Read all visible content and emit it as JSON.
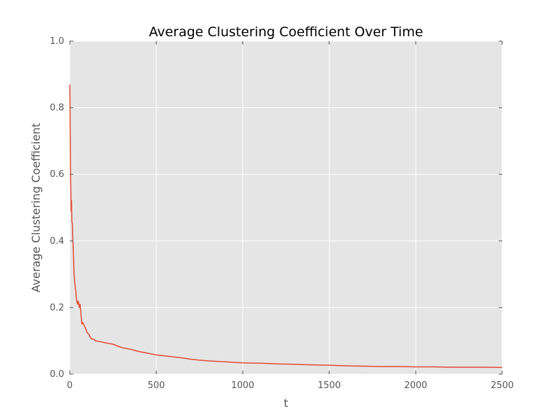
{
  "chart_data": {
    "type": "line",
    "title": "Average Clustering Coefficient Over Time",
    "xlabel": "t",
    "ylabel": "Average Clustering Coefficient",
    "xlim": [
      0,
      2500
    ],
    "ylim": [
      0,
      1.0
    ],
    "x_ticks": [
      0,
      500,
      1000,
      1500,
      2000,
      2500
    ],
    "x_tick_labels": [
      "0",
      "500",
      "1000",
      "1500",
      "2000",
      "2500"
    ],
    "y_ticks": [
      0.0,
      0.2,
      0.4,
      0.6,
      0.8,
      1.0
    ],
    "y_tick_labels": [
      "0.0",
      "0.2",
      "0.4",
      "0.6",
      "0.8",
      "1.0"
    ],
    "grid": true,
    "legend": "none",
    "colors": {
      "background": "#e5e5e5",
      "grid": "#ffffff",
      "line": "#e24a33"
    },
    "series": [
      {
        "x": [
          1,
          3,
          5,
          8,
          10,
          12,
          15,
          18,
          20,
          25,
          30,
          35,
          40,
          45,
          50,
          55,
          60,
          65,
          70,
          75,
          80,
          90,
          100,
          110,
          120,
          130,
          140,
          150,
          175,
          200,
          250,
          300,
          350,
          400,
          450,
          500,
          550,
          600,
          650,
          700,
          750,
          800,
          900,
          1000,
          1100,
          1200,
          1300,
          1400,
          1500,
          1600,
          1700,
          1800,
          1900,
          2000,
          2100,
          2200,
          2300,
          2400,
          2500
        ],
        "y": [
          0.87,
          0.7,
          0.6,
          0.49,
          0.52,
          0.46,
          0.45,
          0.4,
          0.38,
          0.3,
          0.27,
          0.25,
          0.22,
          0.21,
          0.22,
          0.2,
          0.21,
          0.18,
          0.15,
          0.155,
          0.15,
          0.14,
          0.125,
          0.12,
          0.11,
          0.105,
          0.105,
          0.1,
          0.098,
          0.095,
          0.09,
          0.08,
          0.075,
          0.068,
          0.063,
          0.058,
          0.055,
          0.052,
          0.049,
          0.045,
          0.042,
          0.04,
          0.037,
          0.034,
          0.033,
          0.031,
          0.03,
          0.028,
          0.027,
          0.025,
          0.024,
          0.023,
          0.023,
          0.022,
          0.022,
          0.021,
          0.021,
          0.021,
          0.02
        ]
      }
    ]
  }
}
